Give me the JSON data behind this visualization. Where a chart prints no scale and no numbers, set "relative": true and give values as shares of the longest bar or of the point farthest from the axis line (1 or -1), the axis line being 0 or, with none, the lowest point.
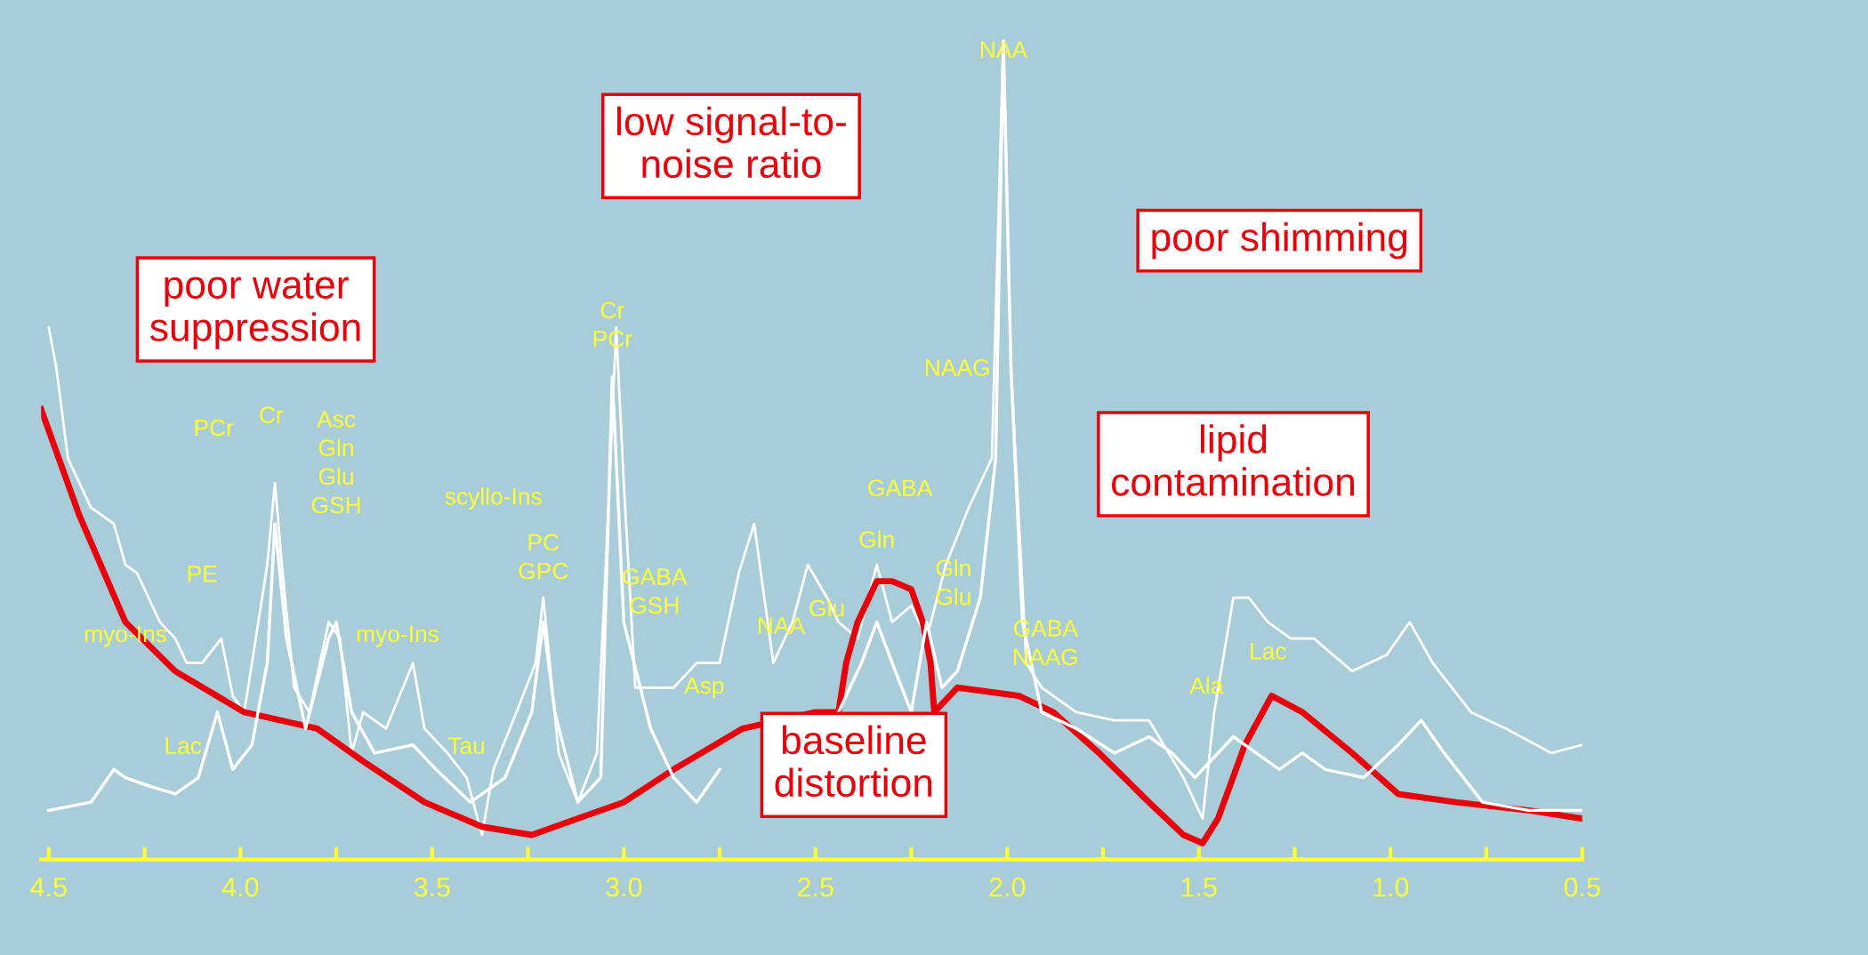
{
  "chart_data": {
    "type": "line",
    "relative": true,
    "grid": false,
    "marker": "none",
    "line_style": "solid",
    "xlim": [
      4.52,
      0.5
    ],
    "xticks": [
      4.5,
      {
        "value": 4.25,
        "label": null
      },
      {
        "value": 4.0,
        "label": "4.0"
      },
      {
        "value": 3.75,
        "label": null
      },
      3.5,
      {
        "value": 3.25,
        "label": null
      },
      {
        "value": 3.0,
        "label": "3.0"
      },
      {
        "value": 2.75,
        "label": null
      },
      2.5,
      {
        "value": 2.25,
        "label": null
      },
      {
        "value": 2.0,
        "label": "2.0"
      },
      {
        "value": 1.75,
        "label": null
      },
      1.5,
      {
        "value": 1.25,
        "label": null
      },
      {
        "value": 1.0,
        "label": "1.0"
      },
      {
        "value": 0.75,
        "label": null
      },
      0.5
    ],
    "series": [
      {
        "color": "#ffffff",
        "x": [
          4.5,
          4.48,
          4.45,
          4.42,
          4.39,
          4.36,
          4.33,
          4.3,
          4.27,
          4.24,
          4.21,
          4.17,
          4.14,
          4.1,
          4.05,
          4.02,
          3.99,
          3.96,
          3.93,
          3.91,
          3.89,
          3.86,
          3.82,
          3.77,
          3.74,
          3.71,
          3.68,
          3.62,
          3.55,
          3.52,
          3.46,
          3.41,
          3.37,
          3.34,
          3.28,
          3.23,
          3.21,
          3.17,
          3.12,
          3.07,
          3.04,
          3.02,
          3.0,
          2.97,
          2.87,
          2.81,
          2.75,
          2.7,
          2.66,
          2.61,
          2.56,
          2.52,
          2.47,
          2.44,
          2.39,
          2.34,
          2.3,
          2.25,
          2.21,
          2.16,
          2.1,
          2.04,
          2.01,
          1.99,
          1.95,
          1.91,
          1.82,
          1.72,
          1.63,
          1.54,
          1.49,
          1.46,
          1.41,
          1.37,
          1.32,
          1.26,
          1.2,
          1.1,
          1.01,
          0.95,
          0.89,
          0.79,
          0.7,
          0.58,
          0.5
        ],
        "values": [
          0.65,
          0.6,
          0.49,
          0.46,
          0.43,
          0.42,
          0.41,
          0.36,
          0.35,
          0.32,
          0.29,
          0.27,
          0.24,
          0.24,
          0.27,
          0.2,
          0.18,
          0.27,
          0.36,
          0.46,
          0.35,
          0.21,
          0.18,
          0.29,
          0.27,
          0.13,
          0.18,
          0.16,
          0.24,
          0.16,
          0.13,
          0.1,
          0.03,
          0.11,
          0.18,
          0.24,
          0.32,
          0.13,
          0.07,
          0.13,
          0.43,
          0.65,
          0.46,
          0.21,
          0.21,
          0.24,
          0.24,
          0.35,
          0.41,
          0.24,
          0.29,
          0.36,
          0.32,
          0.29,
          0.27,
          0.36,
          0.29,
          0.31,
          0.27,
          0.36,
          0.43,
          0.49,
          1.0,
          0.6,
          0.24,
          0.21,
          0.18,
          0.17,
          0.17,
          0.1,
          0.05,
          0.18,
          0.32,
          0.32,
          0.29,
          0.27,
          0.27,
          0.23,
          0.25,
          0.29,
          0.24,
          0.18,
          0.16,
          0.13,
          0.14
        ]
      },
      {
        "color": "#ffffff",
        "x": [
          4.5,
          4.39,
          4.33,
          4.3,
          4.24,
          4.17,
          4.11,
          4.06,
          4.02,
          3.97,
          3.93,
          3.91,
          3.88,
          3.83,
          3.77,
          3.75,
          3.71,
          3.65,
          3.55,
          3.49,
          3.4,
          3.31,
          3.24,
          3.21,
          3.18,
          3.12,
          3.06,
          3.03,
          3.0,
          2.93,
          2.87,
          2.81,
          2.75,
          2.69,
          2.62,
          2.56,
          2.5,
          2.44,
          2.38,
          2.34,
          2.3,
          2.25,
          2.21,
          2.17,
          2.13,
          2.07,
          2.03,
          2.01,
          1.99,
          1.96,
          1.91,
          1.82,
          1.72,
          1.63,
          1.57,
          1.51,
          1.41,
          1.35,
          1.29,
          1.23,
          1.17,
          1.07,
          0.98,
          0.92,
          0.86,
          0.76,
          0.64,
          0.5
        ],
        "values": [
          0.06,
          0.07,
          0.11,
          0.1,
          0.09,
          0.08,
          0.1,
          0.18,
          0.11,
          0.14,
          0.24,
          0.41,
          0.27,
          0.16,
          0.27,
          0.29,
          0.18,
          0.13,
          0.14,
          0.11,
          0.07,
          0.1,
          0.18,
          0.29,
          0.18,
          0.07,
          0.1,
          0.59,
          0.29,
          0.16,
          0.1,
          0.07,
          0.11,
          null,
          null,
          null,
          null,
          0.18,
          0.24,
          0.29,
          0.24,
          0.18,
          0.29,
          0.21,
          0.23,
          0.32,
          0.49,
          1.0,
          0.6,
          0.29,
          0.18,
          0.16,
          0.13,
          0.15,
          0.13,
          0.1,
          0.15,
          0.13,
          0.11,
          0.13,
          0.11,
          0.1,
          0.14,
          0.17,
          0.13,
          0.07,
          0.06,
          0.06
        ]
      },
      {
        "color": "#e8000b",
        "x": [
          4.52,
          4.42,
          4.3,
          4.17,
          3.99,
          3.8,
          3.68,
          3.52,
          3.37,
          3.24,
          3.12,
          3.0,
          2.87,
          2.69,
          2.5,
          2.44,
          2.42,
          2.39,
          2.34,
          2.3,
          2.25,
          2.22,
          2.2,
          2.19,
          2.13,
          1.97,
          1.88,
          1.76,
          1.63,
          1.54,
          1.49,
          1.45,
          1.38,
          1.31,
          1.23,
          1.1,
          0.98,
          0.83,
          0.64,
          0.5
        ],
        "values": [
          0.55,
          0.42,
          0.29,
          0.23,
          0.18,
          0.16,
          0.12,
          0.07,
          0.04,
          0.03,
          0.05,
          0.07,
          0.11,
          0.16,
          0.18,
          0.18,
          0.24,
          0.29,
          0.34,
          0.34,
          0.33,
          0.29,
          0.24,
          0.18,
          0.21,
          0.2,
          0.18,
          0.13,
          0.07,
          0.03,
          0.02,
          0.05,
          0.14,
          0.2,
          0.18,
          0.13,
          0.08,
          0.07,
          0.06,
          0.05
        ]
      }
    ],
    "annotations": [
      "NAA",
      "NAAG",
      "Cr\nPCr",
      "PCr",
      "Cr",
      "Asc\nGln\nGlu\nGSH",
      "scyllo-Ins",
      "PC\nGPC",
      "GABA\nGSH",
      "PE",
      "myo-Ins",
      "myo-Ins",
      "Lac",
      "Tau",
      "Asp",
      "NAA",
      "Glu",
      "Gln",
      "GABA",
      "Gln\nGlu",
      "GABA\nNAAG",
      "Ala",
      "Lac",
      "poor water\nsuppression",
      "low signal-to-\nnoise ratio",
      "poor shimming",
      "lipid\ncontamination",
      "baseline\ndistortion"
    ]
  }
}
